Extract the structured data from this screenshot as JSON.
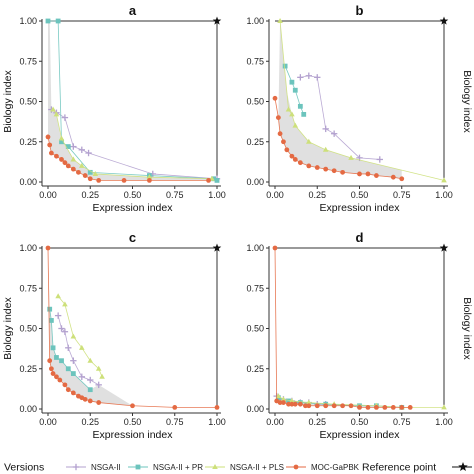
{
  "figure": {
    "x_axis_label": "Expression index",
    "y_axis_label": "Biology index"
  },
  "legend": {
    "versions_label": "Versions",
    "reference_label": "Reference point",
    "entries": [
      {
        "label": "NSGA-II",
        "color": "#b3a1cf",
        "marker": "plus"
      },
      {
        "label": "NSGA-II + PR",
        "color": "#6cc4bd",
        "marker": "square"
      },
      {
        "label": "NSGA-II + PLS",
        "color": "#cde07a",
        "marker": "triangle"
      },
      {
        "label": "MOC-GaPBK",
        "color": "#e46a43",
        "marker": "circle"
      }
    ]
  },
  "colors": {
    "nsga": "#b3a1cf",
    "pr": "#6cc4bd",
    "pls": "#cde07a",
    "moc": "#e46a43",
    "band": "#e0e0e0",
    "axis": "#333333"
  },
  "chart_data": [
    {
      "type": "scatter",
      "title": "a",
      "xlabel": "Expression index",
      "ylabel": "Biology index",
      "xlim": [
        0,
        1
      ],
      "ylim": [
        0,
        1
      ],
      "x_ticks": [
        "0.00",
        "0.25",
        "0.50",
        "0.75",
        "1.00"
      ],
      "y_ticks": [
        "0.00",
        "0.25",
        "0.50",
        "0.75",
        "1.00"
      ],
      "reference_point": [
        1,
        1
      ],
      "series": [
        {
          "name": "NSGA-II",
          "x": [
            0.02,
            0.05,
            0.1,
            0.15,
            0.2,
            0.24,
            0.62,
            1.0
          ],
          "y": [
            0.45,
            0.43,
            0.4,
            0.22,
            0.2,
            0.18,
            0.05,
            0.02
          ]
        },
        {
          "name": "NSGA-II + PR",
          "x": [
            0.0,
            0.06,
            0.08,
            0.12,
            0.25,
            0.6,
            0.98,
            1.0
          ],
          "y": [
            1.0,
            1.0,
            0.25,
            0.22,
            0.06,
            0.04,
            0.02,
            0.01
          ]
        },
        {
          "name": "NSGA-II + PLS",
          "x": [
            0.03,
            0.05,
            0.08,
            0.15,
            0.2,
            0.28,
            0.6,
            0.97
          ],
          "y": [
            0.45,
            0.42,
            0.27,
            0.14,
            0.1,
            0.05,
            0.03,
            0.02
          ]
        },
        {
          "name": "MOC-GaPBK",
          "x": [
            0.0,
            0.01,
            0.02,
            0.05,
            0.08,
            0.1,
            0.12,
            0.15,
            0.18,
            0.22,
            0.25,
            0.3,
            0.45,
            0.6,
            0.95
          ],
          "y": [
            0.28,
            0.23,
            0.18,
            0.16,
            0.14,
            0.12,
            0.1,
            0.08,
            0.06,
            0.04,
            0.02,
            0.01,
            0.01,
            0.01,
            0.01
          ]
        }
      ]
    },
    {
      "type": "scatter",
      "title": "b",
      "xlabel": "Expression index",
      "ylabel": "Biology index",
      "xlim": [
        0,
        1
      ],
      "ylim": [
        0,
        1
      ],
      "x_ticks": [
        "0.00",
        "0.25",
        "0.50",
        "0.75",
        "1.00"
      ],
      "y_ticks": [
        "0.00",
        "0.25",
        "0.50",
        "0.75",
        "1.00"
      ],
      "reference_point": [
        1,
        1
      ],
      "series": [
        {
          "name": "NSGA-II",
          "x": [
            0.15,
            0.2,
            0.25,
            0.3,
            0.35,
            0.5,
            0.62
          ],
          "y": [
            0.65,
            0.66,
            0.65,
            0.33,
            0.3,
            0.15,
            0.14
          ]
        },
        {
          "name": "NSGA-II + PR",
          "x": [
            0.06,
            0.1,
            0.12,
            0.15,
            0.17
          ],
          "y": [
            0.72,
            0.62,
            0.57,
            0.47,
            0.42
          ]
        },
        {
          "name": "NSGA-II + PLS",
          "x": [
            0.03,
            0.08,
            0.1,
            0.12,
            0.2,
            0.3,
            0.45,
            1.0
          ],
          "y": [
            1.0,
            0.45,
            0.42,
            0.35,
            0.25,
            0.2,
            0.15,
            0.01
          ]
        },
        {
          "name": "MOC-GaPBK",
          "x": [
            0.0,
            0.02,
            0.03,
            0.05,
            0.07,
            0.1,
            0.12,
            0.15,
            0.2,
            0.25,
            0.3,
            0.35,
            0.4,
            0.5,
            0.55,
            0.6,
            0.7,
            0.75
          ],
          "y": [
            0.52,
            0.4,
            0.3,
            0.25,
            0.2,
            0.16,
            0.14,
            0.12,
            0.1,
            0.09,
            0.08,
            0.07,
            0.06,
            0.05,
            0.05,
            0.04,
            0.03,
            0.02
          ]
        }
      ]
    },
    {
      "type": "scatter",
      "title": "c",
      "xlabel": "Expression index",
      "ylabel": "Biology index",
      "xlim": [
        0,
        1
      ],
      "ylim": [
        0,
        1
      ],
      "x_ticks": [
        "0.00",
        "0.25",
        "0.50",
        "0.75",
        "1.00"
      ],
      "y_ticks": [
        "0.00",
        "0.25",
        "0.50",
        "0.75",
        "1.00"
      ],
      "reference_point": [
        1,
        1
      ],
      "series": [
        {
          "name": "NSGA-II",
          "x": [
            0.06,
            0.08,
            0.1,
            0.12,
            0.15,
            0.2,
            0.25,
            0.3
          ],
          "y": [
            0.58,
            0.5,
            0.48,
            0.38,
            0.3,
            0.2,
            0.18,
            0.15
          ]
        },
        {
          "name": "NSGA-II + PR",
          "x": [
            0.01,
            0.02,
            0.03,
            0.05,
            0.08,
            0.12,
            0.15,
            0.25
          ],
          "y": [
            0.62,
            0.55,
            0.38,
            0.32,
            0.3,
            0.25,
            0.22,
            0.12
          ]
        },
        {
          "name": "NSGA-II + PLS",
          "x": [
            0.06,
            0.1,
            0.15,
            0.2,
            0.25,
            0.3,
            0.32
          ],
          "y": [
            0.7,
            0.65,
            0.45,
            0.38,
            0.3,
            0.25,
            0.2
          ]
        },
        {
          "name": "MOC-GaPBK",
          "x": [
            0.0,
            0.01,
            0.02,
            0.03,
            0.05,
            0.07,
            0.1,
            0.12,
            0.15,
            0.18,
            0.2,
            0.22,
            0.25,
            0.3,
            0.5,
            0.75,
            1.0
          ],
          "y": [
            1.0,
            0.3,
            0.25,
            0.22,
            0.2,
            0.18,
            0.15,
            0.12,
            0.1,
            0.08,
            0.07,
            0.06,
            0.05,
            0.04,
            0.02,
            0.01,
            0.01
          ]
        }
      ]
    },
    {
      "type": "scatter",
      "title": "d",
      "xlabel": "Expression index",
      "ylabel": "Biology index",
      "xlim": [
        0,
        1
      ],
      "ylim": [
        0,
        1
      ],
      "x_ticks": [
        "0.00",
        "0.25",
        "0.50",
        "0.75",
        "1.00"
      ],
      "y_ticks": [
        "0.00",
        "0.25",
        "0.50",
        "0.75",
        "1.00"
      ],
      "reference_point": [
        1,
        1
      ],
      "series": [
        {
          "name": "NSGA-II",
          "x": [
            0.01,
            0.05,
            0.1,
            0.15,
            0.2,
            0.25,
            0.3
          ],
          "y": [
            0.08,
            0.06,
            0.05,
            0.04,
            0.04,
            0.03,
            0.03
          ]
        },
        {
          "name": "NSGA-II + PR",
          "x": [
            0.02,
            0.08,
            0.15,
            0.3,
            0.5,
            0.6,
            0.75
          ],
          "y": [
            0.07,
            0.05,
            0.04,
            0.03,
            0.02,
            0.02,
            0.01
          ]
        },
        {
          "name": "NSGA-II + PLS",
          "x": [
            0.02,
            0.05,
            0.1,
            0.2,
            0.35,
            0.6,
            0.75,
            1.0
          ],
          "y": [
            0.08,
            0.06,
            0.05,
            0.04,
            0.03,
            0.02,
            0.01,
            0.01
          ]
        },
        {
          "name": "MOC-GaPBK",
          "x": [
            0.0,
            0.01,
            0.03,
            0.05,
            0.08,
            0.1,
            0.12,
            0.15,
            0.18,
            0.2,
            0.25,
            0.3,
            0.35,
            0.4,
            0.45,
            0.5,
            0.55,
            0.6,
            0.65,
            0.7,
            0.75,
            0.8
          ],
          "y": [
            1.0,
            0.05,
            0.04,
            0.04,
            0.03,
            0.03,
            0.03,
            0.03,
            0.02,
            0.02,
            0.02,
            0.02,
            0.02,
            0.02,
            0.02,
            0.01,
            0.01,
            0.01,
            0.01,
            0.01,
            0.01,
            0.01
          ]
        }
      ]
    }
  ]
}
